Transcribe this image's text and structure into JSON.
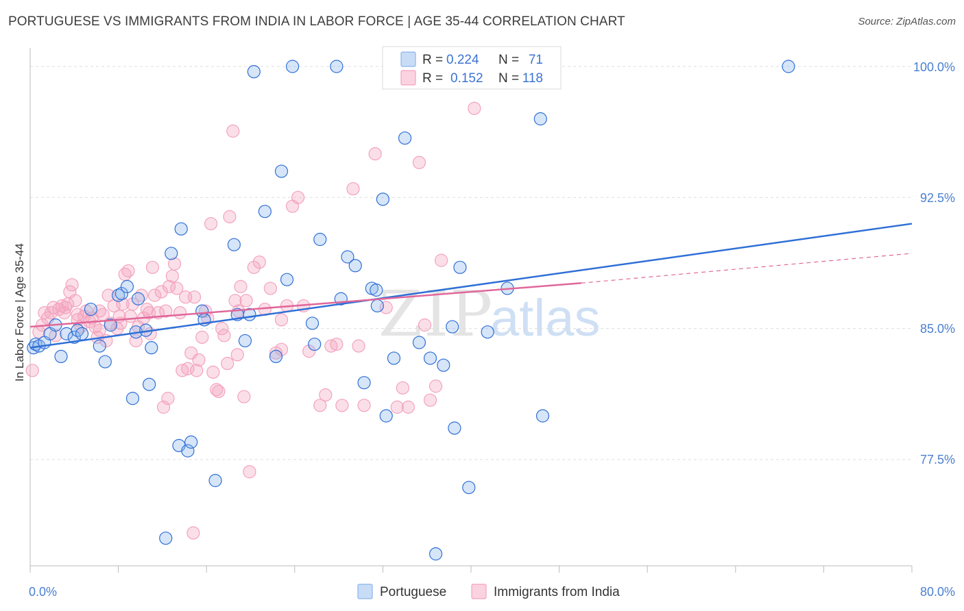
{
  "title": "PORTUGUESE VS IMMIGRANTS FROM INDIA IN LABOR FORCE | AGE 35-44 CORRELATION CHART",
  "source": "Source: ZipAtlas.com",
  "watermark": {
    "zip": "ZIP",
    "atlas": "atlas"
  },
  "colors": {
    "portuguese": "#8ab4ec",
    "portuguese_line": "#2f6fd6",
    "india": "#f3a2bd",
    "india_line": "#e0679a",
    "tick_text": "#4a7fd0",
    "grid": "#dddddd"
  },
  "legend": {
    "rows": [
      {
        "r_label": "R =",
        "r_value": "0.224",
        "n_label": "N =",
        "n_value": "71"
      },
      {
        "r_label": "R =",
        "r_value": "0.152",
        "n_label": "N =",
        "n_value": "118"
      }
    ]
  },
  "chart_data": {
    "type": "scatter",
    "title": "PORTUGUESE VS IMMIGRANTS FROM INDIA IN LABOR FORCE | AGE 35-44 CORRELATION CHART",
    "xlabel": "",
    "ylabel": "In Labor Force | Age 35-44",
    "xlim": [
      0,
      80
    ],
    "ylim": [
      70.5,
      101
    ],
    "x_tick_labels": [
      "0.0%",
      "80.0%"
    ],
    "y_ticks": [
      77.5,
      85.0,
      92.5,
      100.0
    ],
    "y_tick_labels": [
      "77.5%",
      "85.0%",
      "92.5%",
      "100.0%"
    ],
    "grid": true,
    "legend_position": "top-center",
    "series": [
      {
        "name": "Portuguese",
        "r": 0.224,
        "n": 71,
        "trend": {
          "x0": 0,
          "y0": 83.9,
          "x1": 80,
          "y1": 91.0
        },
        "points": [
          [
            0.3,
            83.9
          ],
          [
            0.5,
            84.1
          ],
          [
            0.8,
            84.0
          ],
          [
            1.3,
            84.2
          ],
          [
            1.8,
            84.7
          ],
          [
            2.3,
            85.2
          ],
          [
            2.8,
            83.4
          ],
          [
            3.3,
            84.7
          ],
          [
            4.0,
            84.5
          ],
          [
            4.3,
            84.9
          ],
          [
            4.7,
            84.7
          ],
          [
            5.5,
            86.1
          ],
          [
            6.3,
            84.0
          ],
          [
            6.8,
            83.1
          ],
          [
            7.3,
            85.2
          ],
          [
            8.0,
            86.9
          ],
          [
            8.3,
            87.0
          ],
          [
            8.8,
            87.4
          ],
          [
            9.8,
            86.7
          ],
          [
            9.6,
            84.8
          ],
          [
            10.5,
            84.9
          ],
          [
            11.0,
            83.9
          ],
          [
            9.3,
            81.0
          ],
          [
            10.8,
            81.8
          ],
          [
            12.8,
            89.3
          ],
          [
            13.7,
            90.7
          ],
          [
            13.5,
            78.3
          ],
          [
            14.3,
            78.0
          ],
          [
            14.6,
            78.5
          ],
          [
            15.6,
            86.0
          ],
          [
            15.8,
            85.5
          ],
          [
            16.8,
            76.3
          ],
          [
            18.5,
            89.8
          ],
          [
            18.8,
            85.8
          ],
          [
            19.5,
            84.3
          ],
          [
            19.9,
            85.8
          ],
          [
            20.3,
            99.7
          ],
          [
            21.3,
            91.7
          ],
          [
            22.3,
            83.4
          ],
          [
            22.8,
            94.0
          ],
          [
            23.3,
            87.8
          ],
          [
            23.8,
            100.0
          ],
          [
            25.6,
            85.3
          ],
          [
            25.8,
            84.1
          ],
          [
            26.3,
            90.1
          ],
          [
            27.8,
            100.0
          ],
          [
            28.2,
            86.7
          ],
          [
            28.8,
            89.1
          ],
          [
            29.5,
            88.6
          ],
          [
            30.3,
            81.9
          ],
          [
            31.0,
            87.3
          ],
          [
            31.4,
            87.2
          ],
          [
            31.5,
            86.3
          ],
          [
            32.0,
            92.4
          ],
          [
            32.3,
            80.0
          ],
          [
            33.0,
            83.3
          ],
          [
            34.0,
            95.9
          ],
          [
            35.3,
            84.2
          ],
          [
            36.3,
            83.3
          ],
          [
            36.8,
            72.1
          ],
          [
            37.5,
            82.9
          ],
          [
            38.3,
            85.1
          ],
          [
            38.5,
            79.3
          ],
          [
            39.0,
            88.5
          ],
          [
            39.8,
            75.9
          ],
          [
            41.5,
            84.8
          ],
          [
            43.3,
            87.3
          ],
          [
            46.3,
            97.0
          ],
          [
            46.5,
            80.0
          ],
          [
            68.8,
            100.0
          ],
          [
            12.3,
            73.0
          ]
        ]
      },
      {
        "name": "Immigrants from India",
        "r": 0.152,
        "n": 118,
        "trend": {
          "x0": 0,
          "y0": 85.1,
          "x1": 50,
          "y1": 87.6,
          "dashed_to_x": 80,
          "dashed_to_y": 89.3
        },
        "points": [
          [
            0.2,
            82.6
          ],
          [
            0.8,
            84.8
          ],
          [
            1.3,
            85.9
          ],
          [
            1.6,
            85.6
          ],
          [
            1.9,
            85.9
          ],
          [
            2.1,
            86.2
          ],
          [
            2.6,
            86.1
          ],
          [
            2.9,
            86.3
          ],
          [
            3.2,
            86.2
          ],
          [
            3.4,
            86.4
          ],
          [
            3.6,
            87.1
          ],
          [
            3.8,
            87.5
          ],
          [
            4.1,
            86.6
          ],
          [
            4.3,
            85.5
          ],
          [
            4.6,
            85.1
          ],
          [
            4.9,
            85.7
          ],
          [
            5.1,
            86.0
          ],
          [
            5.4,
            85.4
          ],
          [
            5.6,
            85.6
          ],
          [
            5.9,
            85.1
          ],
          [
            6.1,
            84.5
          ],
          [
            6.3,
            84.9
          ],
          [
            6.6,
            85.8
          ],
          [
            6.9,
            84.3
          ],
          [
            7.1,
            86.9
          ],
          [
            7.3,
            85.3
          ],
          [
            7.6,
            86.3
          ],
          [
            7.9,
            85.0
          ],
          [
            8.1,
            85.7
          ],
          [
            8.4,
            86.4
          ],
          [
            8.6,
            88.1
          ],
          [
            8.9,
            88.3
          ],
          [
            9.1,
            85.7
          ],
          [
            9.3,
            86.4
          ],
          [
            9.6,
            84.3
          ],
          [
            9.8,
            85.1
          ],
          [
            10.1,
            86.9
          ],
          [
            10.3,
            85.6
          ],
          [
            10.6,
            86.1
          ],
          [
            10.9,
            84.7
          ],
          [
            11.1,
            88.5
          ],
          [
            11.3,
            86.9
          ],
          [
            11.6,
            85.9
          ],
          [
            11.9,
            87.1
          ],
          [
            12.1,
            80.5
          ],
          [
            12.3,
            86.0
          ],
          [
            12.6,
            87.4
          ],
          [
            12.9,
            88.0
          ],
          [
            13.1,
            88.7
          ],
          [
            13.3,
            87.3
          ],
          [
            13.6,
            85.9
          ],
          [
            13.8,
            82.6
          ],
          [
            14.1,
            86.8
          ],
          [
            14.3,
            82.7
          ],
          [
            14.6,
            83.6
          ],
          [
            14.9,
            86.8
          ],
          [
            15.1,
            82.6
          ],
          [
            15.3,
            83.2
          ],
          [
            15.6,
            84.5
          ],
          [
            15.9,
            86.0
          ],
          [
            16.1,
            85.6
          ],
          [
            16.4,
            91.0
          ],
          [
            16.6,
            82.5
          ],
          [
            16.9,
            81.5
          ],
          [
            17.1,
            81.4
          ],
          [
            17.4,
            85.0
          ],
          [
            17.6,
            84.6
          ],
          [
            17.9,
            83.0
          ],
          [
            18.1,
            91.4
          ],
          [
            18.4,
            96.3
          ],
          [
            18.6,
            86.6
          ],
          [
            18.9,
            86.0
          ],
          [
            19.1,
            87.4
          ],
          [
            19.4,
            81.1
          ],
          [
            19.6,
            86.6
          ],
          [
            19.9,
            76.8
          ],
          [
            20.3,
            88.5
          ],
          [
            20.8,
            88.8
          ],
          [
            21.3,
            86.1
          ],
          [
            21.8,
            87.3
          ],
          [
            22.3,
            83.6
          ],
          [
            22.8,
            85.5
          ],
          [
            23.3,
            86.3
          ],
          [
            23.8,
            92.0
          ],
          [
            24.3,
            92.5
          ],
          [
            24.8,
            86.3
          ],
          [
            25.3,
            83.7
          ],
          [
            26.3,
            80.6
          ],
          [
            26.8,
            81.2
          ],
          [
            27.3,
            84.0
          ],
          [
            27.8,
            84.1
          ],
          [
            28.3,
            80.6
          ],
          [
            29.3,
            93.0
          ],
          [
            29.8,
            84.0
          ],
          [
            30.3,
            80.6
          ],
          [
            31.3,
            95.0
          ],
          [
            32.3,
            86.2
          ],
          [
            33.3,
            80.5
          ],
          [
            33.8,
            81.6
          ],
          [
            34.3,
            80.5
          ],
          [
            35.3,
            94.5
          ],
          [
            35.8,
            85.2
          ],
          [
            36.3,
            80.9
          ],
          [
            36.8,
            81.7
          ],
          [
            37.3,
            88.9
          ],
          [
            40.3,
            97.6
          ],
          [
            43.3,
            100.0
          ],
          [
            14.8,
            73.3
          ],
          [
            12.5,
            81.0
          ],
          [
            22.8,
            83.8
          ],
          [
            8.2,
            85.3
          ],
          [
            10.8,
            85.9
          ],
          [
            6.3,
            86.0
          ],
          [
            4.3,
            85.8
          ],
          [
            2.3,
            84.6
          ],
          [
            1.1,
            85.2
          ],
          [
            3.1,
            85.9
          ],
          [
            18.8,
            83.5
          ]
        ]
      }
    ]
  },
  "bottom_legend": {
    "items": [
      "Portuguese",
      "Immigrants from India"
    ]
  }
}
